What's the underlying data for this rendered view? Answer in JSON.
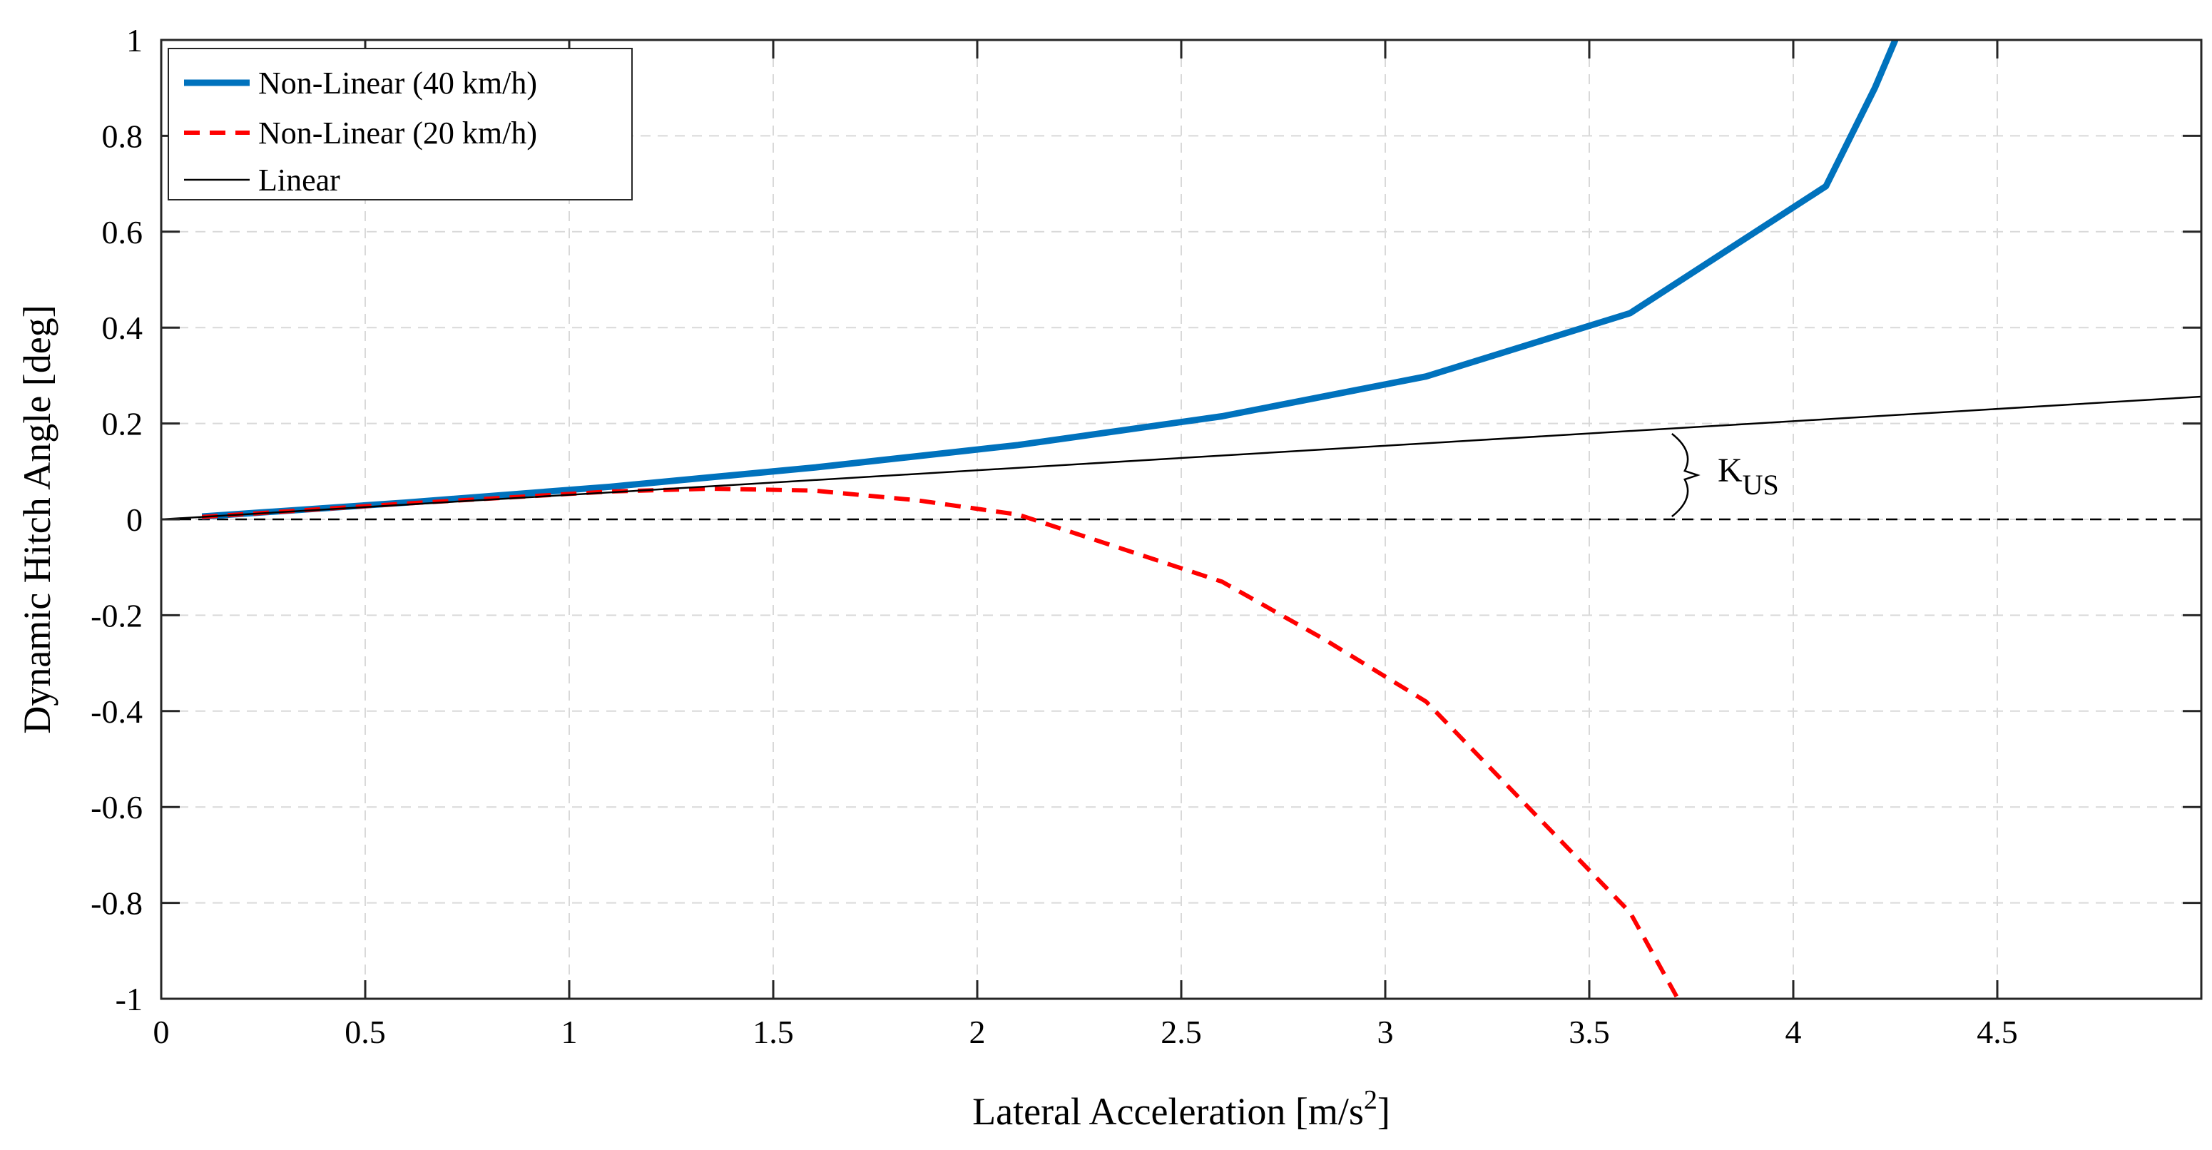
{
  "chart_data": {
    "type": "line",
    "title": "",
    "xlabel": "Lateral Acceleration [m/s",
    "xlabel_sup": "2",
    "xlabel_end": "]",
    "ylabel": "Dynamic Hitch Angle [deg]",
    "xlim": [
      0,
      5
    ],
    "ylim": [
      -1,
      1
    ],
    "grid": true,
    "legend_position": "top-left",
    "x_ticks": [
      0,
      0.5,
      1,
      1.5,
      2,
      2.5,
      3,
      3.5,
      4,
      4.5
    ],
    "x_tick_labels": [
      "0",
      "0.5",
      "1",
      "1.5",
      "2",
      "2.5",
      "3",
      "3.5",
      "4",
      "4.5"
    ],
    "y_ticks": [
      -1,
      -0.8,
      -0.6,
      -0.4,
      -0.2,
      0,
      0.2,
      0.4,
      0.6,
      0.8,
      1
    ],
    "y_tick_labels": [
      "-1",
      "-0.8",
      "-0.6",
      "-0.4",
      "-0.2",
      "0",
      "0.2",
      "0.4",
      "0.6",
      "0.8",
      "1"
    ],
    "series": [
      {
        "name": "Non-Linear (40 km/h)",
        "color": "#0072BD",
        "style": "solid-thick",
        "points": [
          [
            0.1,
            0.006
          ],
          [
            0.6,
            0.035
          ],
          [
            1.1,
            0.068
          ],
          [
            1.6,
            0.108
          ],
          [
            2.1,
            0.155
          ],
          [
            2.6,
            0.215
          ],
          [
            3.1,
            0.298
          ],
          [
            3.6,
            0.43
          ],
          [
            4.08,
            0.695
          ],
          [
            4.2,
            0.9
          ],
          [
            4.26,
            1.02
          ]
        ]
      },
      {
        "name": "Non-Linear (20 km/h)",
        "color": "#FF0000",
        "style": "dashed",
        "points": [
          [
            0.1,
            0.005
          ],
          [
            0.6,
            0.033
          ],
          [
            1.1,
            0.058
          ],
          [
            1.35,
            0.064
          ],
          [
            1.6,
            0.06
          ],
          [
            1.85,
            0.04
          ],
          [
            2.1,
            0.01
          ],
          [
            2.35,
            -0.06
          ],
          [
            2.6,
            -0.13
          ],
          [
            2.85,
            -0.25
          ],
          [
            3.1,
            -0.38
          ],
          [
            3.35,
            -0.6
          ],
          [
            3.6,
            -0.82
          ],
          [
            3.73,
            -1.02
          ]
        ]
      },
      {
        "name": "Linear",
        "color": "#000000",
        "style": "solid-thin",
        "points": [
          [
            0,
            0
          ],
          [
            5,
            0.256
          ]
        ]
      }
    ],
    "reference_line": {
      "y": 0,
      "style": "dashed",
      "color": "#000000",
      "x_range": [
        0,
        5
      ]
    },
    "annotations": [
      {
        "label": "K",
        "sub": "US",
        "x": 3.72,
        "y": 0.12
      }
    ]
  }
}
